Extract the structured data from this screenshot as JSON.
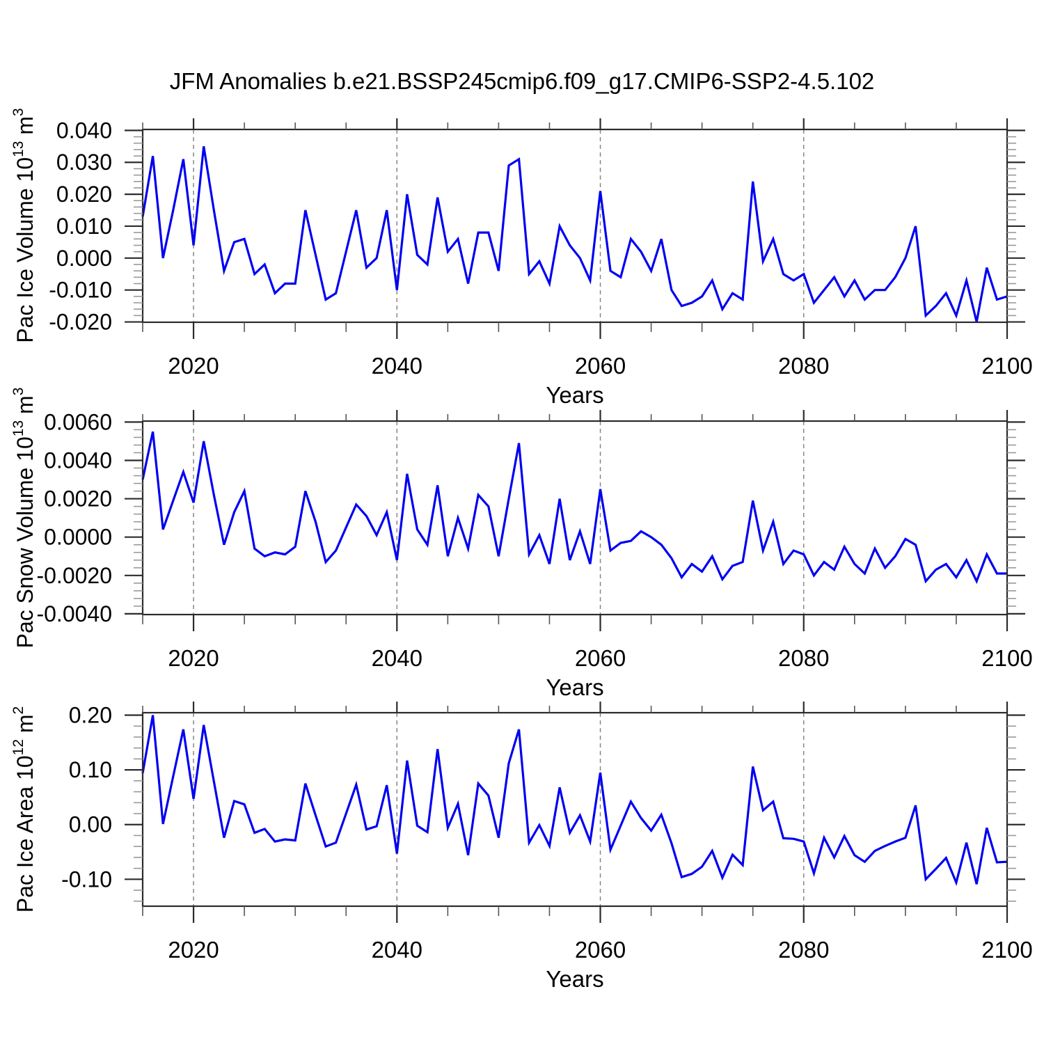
{
  "title": "JFM Anomalies b.e21.BSSP245cmip6.f09_g17.CMIP6-SSP2-4.5.102",
  "line_color": "#0000f2",
  "chart_data": {
    "type": "line",
    "layout_hint": "three stacked x-y line panels, shared x axis style, dashed vertical gridlines at labeled years, tick marks outside on all four sides, no legend",
    "x": [
      2015,
      2016,
      2017,
      2018,
      2019,
      2020,
      2021,
      2022,
      2023,
      2024,
      2025,
      2026,
      2027,
      2028,
      2029,
      2030,
      2031,
      2032,
      2033,
      2034,
      2035,
      2036,
      2037,
      2038,
      2039,
      2040,
      2041,
      2042,
      2043,
      2044,
      2045,
      2046,
      2047,
      2048,
      2049,
      2050,
      2051,
      2052,
      2053,
      2054,
      2055,
      2056,
      2057,
      2058,
      2059,
      2060,
      2061,
      2062,
      2063,
      2064,
      2065,
      2066,
      2067,
      2068,
      2069,
      2070,
      2071,
      2072,
      2073,
      2074,
      2075,
      2076,
      2077,
      2078,
      2079,
      2080,
      2081,
      2082,
      2083,
      2084,
      2085,
      2086,
      2087,
      2088,
      2089,
      2090,
      2091,
      2092,
      2093,
      2094,
      2095,
      2096,
      2097,
      2098,
      2099,
      2100
    ],
    "xlabel": "Years",
    "xlim": [
      2015,
      2100
    ],
    "xticks": [
      {
        "v": 2020,
        "label": "2020",
        "grid": true
      },
      {
        "v": 2040,
        "label": "2040",
        "grid": true
      },
      {
        "v": 2060,
        "label": "2060",
        "grid": true
      },
      {
        "v": 2080,
        "label": "2080",
        "grid": true
      },
      {
        "v": 2100,
        "label": "2100",
        "grid": false
      }
    ],
    "xminor_step": 5,
    "panels": [
      {
        "name": "pac-ice-volume",
        "ylabel": {
          "text": "Pac Ice Volume 10",
          "sup1": "13",
          "unit": " m",
          "sup2": "3"
        },
        "xlabel": "Years",
        "ylim": [
          -0.0201,
          0.0403
        ],
        "yticks": [
          {
            "v": 0.04,
            "label": "0.040"
          },
          {
            "v": 0.03,
            "label": "0.030"
          },
          {
            "v": 0.02,
            "label": "0.020"
          },
          {
            "v": 0.01,
            "label": "0.010"
          },
          {
            "v": 0.0,
            "label": "0.000"
          },
          {
            "v": -0.01,
            "label": "-0.010"
          },
          {
            "v": -0.02,
            "label": "-0.020"
          }
        ],
        "yminor_step": 0.002,
        "values": [
          0.013,
          0.032,
          0.0,
          0.015,
          0.031,
          0.004,
          0.035,
          0.015,
          -0.004,
          0.005,
          0.006,
          -0.005,
          -0.002,
          -0.011,
          -0.008,
          -0.008,
          0.015,
          0.001,
          -0.013,
          -0.011,
          0.002,
          0.015,
          -0.003,
          0.0,
          0.015,
          -0.01,
          0.02,
          0.001,
          -0.002,
          0.019,
          0.002,
          0.006,
          -0.008,
          0.008,
          0.008,
          -0.004,
          0.029,
          0.031,
          -0.005,
          -0.001,
          -0.008,
          0.01,
          0.004,
          0.0,
          -0.007,
          0.021,
          -0.004,
          -0.006,
          0.006,
          0.002,
          -0.004,
          0.006,
          -0.01,
          -0.015,
          -0.014,
          -0.012,
          -0.007,
          -0.016,
          -0.011,
          -0.013,
          0.024,
          -0.001,
          0.006,
          -0.005,
          -0.007,
          -0.005,
          -0.014,
          -0.01,
          -0.006,
          -0.012,
          -0.007,
          -0.013,
          -0.01,
          -0.01,
          -0.006,
          0.0,
          0.01,
          -0.018,
          -0.015,
          -0.011,
          -0.018,
          -0.007,
          -0.02,
          -0.003,
          -0.013,
          -0.012
        ]
      },
      {
        "name": "pac-snow-volume",
        "ylabel": {
          "text": "Pac Snow Volume 10",
          "sup1": "13",
          "unit": " m",
          "sup2": "3"
        },
        "xlabel": "Years",
        "ylim": [
          -0.00404,
          0.00605
        ],
        "yticks": [
          {
            "v": 0.006,
            "label": "0.0060"
          },
          {
            "v": 0.004,
            "label": "0.0040"
          },
          {
            "v": 0.002,
            "label": "0.0020"
          },
          {
            "v": 0.0,
            "label": "0.0000"
          },
          {
            "v": -0.002,
            "label": "-0.0020"
          },
          {
            "v": -0.004,
            "label": "-0.0040"
          }
        ],
        "yminor_step": 0.0004,
        "values": [
          0.003,
          0.0055,
          0.0004,
          0.0019,
          0.0034,
          0.0018,
          0.005,
          0.0022,
          -0.0004,
          0.0013,
          0.0024,
          -0.0006,
          -0.001,
          -0.0008,
          -0.0009,
          -0.0005,
          0.0024,
          0.0008,
          -0.0013,
          -0.0007,
          0.0005,
          0.0017,
          0.0011,
          0.0001,
          0.0013,
          -0.0012,
          0.0033,
          0.0004,
          -0.0004,
          0.0027,
          -0.001,
          0.001,
          -0.0006,
          0.0022,
          0.0016,
          -0.001,
          0.002,
          0.0049,
          -0.0009,
          0.0001,
          -0.0014,
          0.002,
          -0.0012,
          0.0003,
          -0.0014,
          0.0025,
          -0.0007,
          -0.0003,
          -0.0002,
          0.0003,
          0.0,
          -0.0004,
          -0.0011,
          -0.0021,
          -0.0014,
          -0.0018,
          -0.001,
          -0.0022,
          -0.0015,
          -0.0013,
          0.0019,
          -0.0007,
          0.0008,
          -0.0014,
          -0.0007,
          -0.0009,
          -0.002,
          -0.0013,
          -0.0017,
          -0.0005,
          -0.0014,
          -0.0019,
          -0.0006,
          -0.0016,
          -0.001,
          -0.0001,
          -0.0004,
          -0.0023,
          -0.0017,
          -0.0014,
          -0.0021,
          -0.0012,
          -0.0023,
          -0.0009,
          -0.0019,
          -0.0019
        ]
      },
      {
        "name": "pac-ice-area",
        "ylabel": {
          "text": "Pac Ice Area 10",
          "sup1": "12",
          "unit": " m",
          "sup2": "2"
        },
        "xlabel": "Years",
        "ylim": [
          -0.1492,
          0.2045
        ],
        "yticks": [
          {
            "v": 0.2,
            "label": "0.20"
          },
          {
            "v": 0.1,
            "label": "0.10"
          },
          {
            "v": 0.0,
            "label": "0.00"
          },
          {
            "v": -0.1,
            "label": "-0.10"
          }
        ],
        "yminor_step": 0.02,
        "values": [
          0.094,
          0.2,
          0.001,
          0.088,
          0.174,
          0.047,
          0.182,
          0.079,
          -0.024,
          0.043,
          0.037,
          -0.015,
          -0.008,
          -0.031,
          -0.027,
          -0.029,
          0.075,
          0.017,
          -0.04,
          -0.033,
          0.02,
          0.073,
          -0.009,
          -0.003,
          0.072,
          -0.053,
          0.117,
          -0.002,
          -0.014,
          0.138,
          -0.006,
          0.038,
          -0.056,
          0.075,
          0.053,
          -0.024,
          0.112,
          0.174,
          -0.033,
          -0.001,
          -0.039,
          0.068,
          -0.015,
          0.017,
          -0.031,
          0.095,
          -0.046,
          -0.002,
          0.042,
          0.012,
          -0.011,
          0.018,
          -0.034,
          -0.096,
          -0.09,
          -0.077,
          -0.048,
          -0.097,
          -0.055,
          -0.074,
          0.106,
          0.026,
          0.042,
          -0.025,
          -0.026,
          -0.031,
          -0.089,
          -0.024,
          -0.06,
          -0.021,
          -0.056,
          -0.068,
          -0.048,
          -0.039,
          -0.031,
          -0.024,
          0.035,
          -0.1,
          -0.081,
          -0.061,
          -0.106,
          -0.033,
          -0.109,
          -0.006,
          -0.069,
          -0.068
        ]
      }
    ]
  }
}
